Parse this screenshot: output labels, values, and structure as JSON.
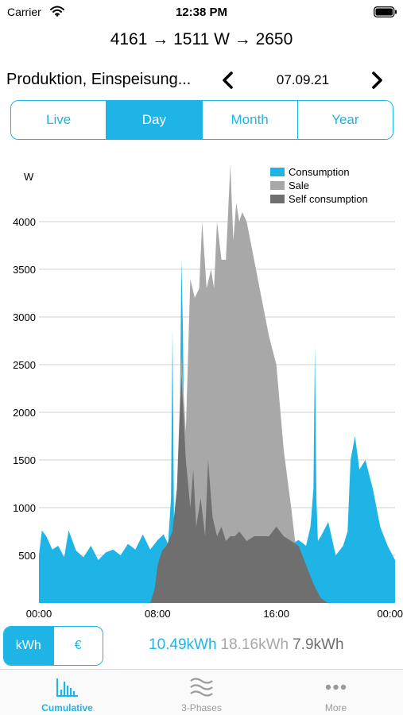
{
  "status_bar": {
    "carrier": "Carrier",
    "time": "12:38 PM"
  },
  "flow_summary": "4161 → 1511 W → 2650",
  "nav": {
    "title": "Produktion, Einspeisung...",
    "date": "07.09.21"
  },
  "period_tabs": [
    {
      "label": "Live",
      "active": false
    },
    {
      "label": "Day",
      "active": true
    },
    {
      "label": "Month",
      "active": false
    },
    {
      "label": "Year",
      "active": false
    }
  ],
  "chart_data": {
    "type": "area",
    "ylabel": "W",
    "ylim": [
      0,
      4500
    ],
    "y_ticks": [
      500,
      1000,
      1500,
      2000,
      2500,
      3000,
      3500,
      4000
    ],
    "x_ticks": [
      "00:00",
      "08:00",
      "16:00",
      "00:00"
    ],
    "grid": true,
    "legend_position": "top-right",
    "x_unit": "hours",
    "xlim": [
      0,
      24
    ],
    "series": [
      {
        "name": "Consumption",
        "color": "#1fb4e6",
        "x": [
          0,
          0.2,
          0.5,
          0.9,
          1.3,
          1.7,
          2.0,
          2.5,
          3.0,
          3.5,
          4.0,
          4.5,
          5.0,
          5.5,
          6.0,
          6.5,
          7.0,
          7.5,
          8.0,
          8.4,
          8.7,
          8.9,
          9.0,
          9.1,
          9.3,
          9.5,
          9.6,
          9.7,
          9.8,
          10.0,
          10.5,
          11.0,
          12.0,
          13.0,
          14.0,
          15.0,
          16.0,
          17.0,
          17.5,
          18.0,
          18.3,
          18.5,
          18.6,
          18.7,
          18.8,
          19.0,
          19.5,
          20.0,
          20.5,
          20.8,
          21.0,
          21.3,
          21.6,
          22.0,
          22.5,
          23.0,
          23.5,
          24
        ],
        "values": [
          500,
          760,
          700,
          560,
          600,
          480,
          760,
          550,
          480,
          600,
          450,
          530,
          560,
          500,
          620,
          560,
          720,
          560,
          660,
          720,
          620,
          1100,
          2880,
          900,
          700,
          2000,
          3600,
          2900,
          1500,
          900,
          600,
          650,
          600,
          620,
          580,
          600,
          640,
          620,
          660,
          600,
          800,
          1200,
          2700,
          1100,
          650,
          700,
          850,
          500,
          600,
          750,
          1500,
          1750,
          1400,
          1500,
          1200,
          800,
          600,
          450
        ]
      },
      {
        "name": "Sale",
        "color": "#a8a8a8",
        "x": [
          0,
          7.6,
          8.0,
          8.5,
          9.0,
          9.3,
          9.6,
          9.9,
          10.2,
          10.5,
          10.8,
          11.0,
          11.3,
          11.6,
          11.8,
          12.0,
          12.3,
          12.6,
          12.9,
          13.1,
          13.3,
          13.5,
          13.7,
          14.0,
          14.5,
          15.0,
          15.5,
          16.0,
          16.5,
          17.0,
          17.3,
          17.6,
          18.0,
          18.5,
          24
        ],
        "values": [
          0,
          0,
          200,
          350,
          700,
          1200,
          2600,
          1800,
          3400,
          3200,
          3300,
          4000,
          3300,
          3500,
          3300,
          4000,
          3600,
          3600,
          4600,
          3800,
          4200,
          4000,
          4100,
          4000,
          3600,
          3200,
          2800,
          2500,
          1600,
          1000,
          600,
          300,
          100,
          0,
          0
        ]
      },
      {
        "name": "Self consumption",
        "color": "#6f6f6f",
        "x": [
          0,
          7.5,
          7.8,
          8.0,
          8.3,
          8.6,
          9.0,
          9.3,
          9.6,
          9.9,
          10.2,
          10.4,
          10.6,
          10.9,
          11.2,
          11.4,
          11.7,
          12.0,
          12.3,
          12.6,
          12.9,
          13.2,
          13.5,
          14.0,
          14.5,
          15.0,
          15.5,
          16.0,
          16.5,
          17.0,
          17.5,
          18.0,
          18.5,
          19.0,
          19.5,
          24
        ],
        "values": [
          0,
          0,
          150,
          400,
          550,
          600,
          750,
          1200,
          2400,
          1500,
          1000,
          1400,
          800,
          1100,
          700,
          1500,
          900,
          700,
          800,
          650,
          700,
          700,
          750,
          650,
          700,
          700,
          700,
          800,
          700,
          650,
          600,
          400,
          200,
          50,
          0,
          0
        ]
      }
    ]
  },
  "unit_toggle": [
    {
      "label": "kWh",
      "active": true
    },
    {
      "label": "€",
      "active": false
    }
  ],
  "totals": {
    "consumption": "10.49kWh",
    "sale": "18.16kWh",
    "self": "7.9kWh"
  },
  "tab_bar": [
    {
      "label": "Cumulative",
      "icon": "bar-chart-icon",
      "active": true
    },
    {
      "label": "3-Phases",
      "icon": "waves-icon",
      "active": false
    },
    {
      "label": "More",
      "icon": "more-dots-icon",
      "active": false
    }
  ]
}
